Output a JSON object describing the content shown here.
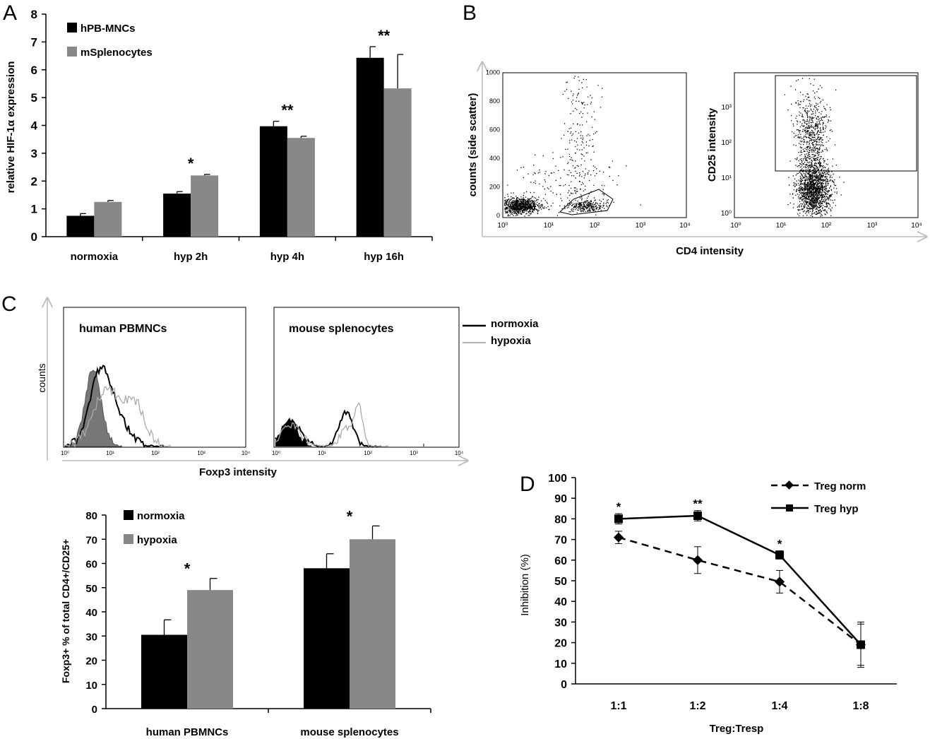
{
  "panels": {
    "a": "A",
    "b": "B",
    "c": "C",
    "d": "D"
  },
  "chart_data": [
    {
      "id": "A",
      "type": "bar",
      "ylabel": "relative HIF-1α expression",
      "categories": [
        "normoxia",
        "hyp 2h",
        "hyp 4h",
        "hyp 16h"
      ],
      "ylim": [
        0,
        8
      ],
      "yticks": [
        0,
        1,
        2,
        3,
        4,
        5,
        6,
        7,
        8
      ],
      "series": [
        {
          "name": "hPB-MNCs",
          "color": "#000000",
          "values": [
            0.75,
            1.55,
            3.97,
            6.43
          ],
          "errors": [
            0.08,
            0.07,
            0.18,
            0.4
          ]
        },
        {
          "name": "mSplenocytes",
          "color": "#888888",
          "values": [
            1.25,
            2.2,
            3.55,
            5.33
          ],
          "errors": [
            0.05,
            0.04,
            0.06,
            1.22
          ]
        }
      ],
      "annotations": [
        "",
        "*",
        "**",
        "**"
      ],
      "legend": "top-left"
    },
    {
      "id": "B",
      "type": "scatter",
      "left": {
        "ylabel": "counts (side scatter)",
        "yticks": [
          "0",
          "200",
          "400",
          "600",
          "800",
          "1000"
        ]
      },
      "right": {
        "ylabel": "CD25 intensity",
        "yticks": [
          "10⁰",
          "10¹",
          "10²",
          "10³"
        ]
      },
      "xticks": [
        "10⁰",
        "10¹",
        "10²",
        "10³",
        "10⁴"
      ],
      "xlabel": "CD4 intensity"
    },
    {
      "id": "C-histogram",
      "type": "area",
      "ylabel": "counts",
      "xlabel": "Foxp3 intensity",
      "subplots": [
        "human PBMNCs",
        "mouse splenocytes"
      ],
      "xticks": [
        "10⁰",
        "10¹",
        "10²",
        "10³",
        "10⁴"
      ],
      "legend": [
        {
          "name": "normoxia",
          "color": "#000000"
        },
        {
          "name": "hypoxia",
          "color": "#999999"
        }
      ]
    },
    {
      "id": "C-bar",
      "type": "bar",
      "ylabel": "Foxp3+ % of total CD4+/CD25+",
      "categories": [
        "human PBMNCs",
        "mouse splenocytes"
      ],
      "ylim": [
        0,
        80
      ],
      "yticks": [
        0,
        10,
        20,
        30,
        40,
        50,
        60,
        70,
        80
      ],
      "series": [
        {
          "name": "normoxia",
          "color": "#000000",
          "values": [
            30.5,
            58
          ],
          "errors": [
            6.2,
            6
          ]
        },
        {
          "name": "hypoxia",
          "color": "#888888",
          "values": [
            49,
            70
          ],
          "errors": [
            4.8,
            5.5
          ]
        }
      ],
      "annotations": [
        "*",
        "*"
      ],
      "legend": "top-left"
    },
    {
      "id": "D",
      "type": "line",
      "xlabel": "Treg:Tresp",
      "ylabel": "Inhibition (%)",
      "categories": [
        "1:1",
        "1:2",
        "1:4",
        "1:8"
      ],
      "ylim": [
        0,
        100
      ],
      "yticks": [
        0,
        10,
        20,
        30,
        40,
        50,
        60,
        70,
        80,
        90,
        100
      ],
      "series": [
        {
          "name": "Treg norm",
          "style": "dashed",
          "marker": "diamond",
          "values": [
            71,
            60,
            49.5,
            19
          ],
          "errors": [
            3,
            6.5,
            5.5,
            10
          ]
        },
        {
          "name": "Treg hyp",
          "style": "solid",
          "marker": "square",
          "values": [
            80,
            81.5,
            62.5,
            19
          ],
          "errors": [
            2.5,
            2.5,
            2,
            11
          ]
        }
      ],
      "annotations": [
        "*",
        "**",
        "*",
        ""
      ],
      "legend": "top-right"
    }
  ]
}
